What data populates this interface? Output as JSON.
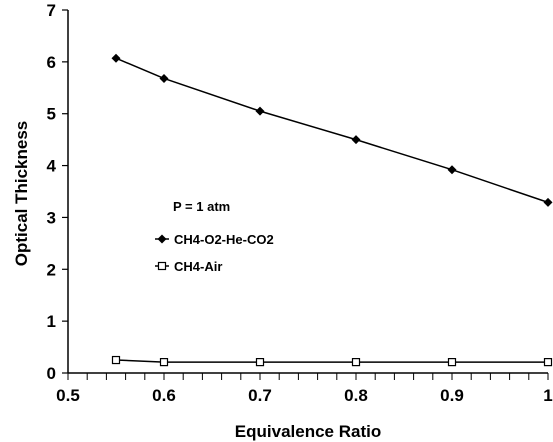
{
  "chart_data": {
    "type": "line",
    "title": "",
    "xlabel": "Equivalence Ratio",
    "ylabel": "Optical Thickness",
    "xlim": [
      0.5,
      1
    ],
    "ylim": [
      0,
      7
    ],
    "x_ticks": [
      "0.5",
      "0.6",
      "0.7",
      "0.8",
      "0.9",
      "1"
    ],
    "y_ticks": [
      "0",
      "1",
      "2",
      "3",
      "4",
      "5",
      "6",
      "7"
    ],
    "x_minor_step": 0.02,
    "grid": false,
    "legend_position": "center-left",
    "annotation": "P = 1 atm",
    "series": [
      {
        "name": "CH4-O2-He-CO2",
        "marker": "filled-diamond",
        "color": "#000000",
        "x": [
          0.55,
          0.6,
          0.7,
          0.8,
          0.9,
          1.0
        ],
        "values": [
          6.07,
          5.68,
          5.05,
          4.5,
          3.92,
          3.29
        ]
      },
      {
        "name": "CH4-Air",
        "marker": "open-square",
        "color": "#000000",
        "x": [
          0.55,
          0.6,
          0.7,
          0.8,
          0.9,
          1.0
        ],
        "values": [
          0.25,
          0.21,
          0.21,
          0.21,
          0.21,
          0.21
        ]
      }
    ]
  }
}
